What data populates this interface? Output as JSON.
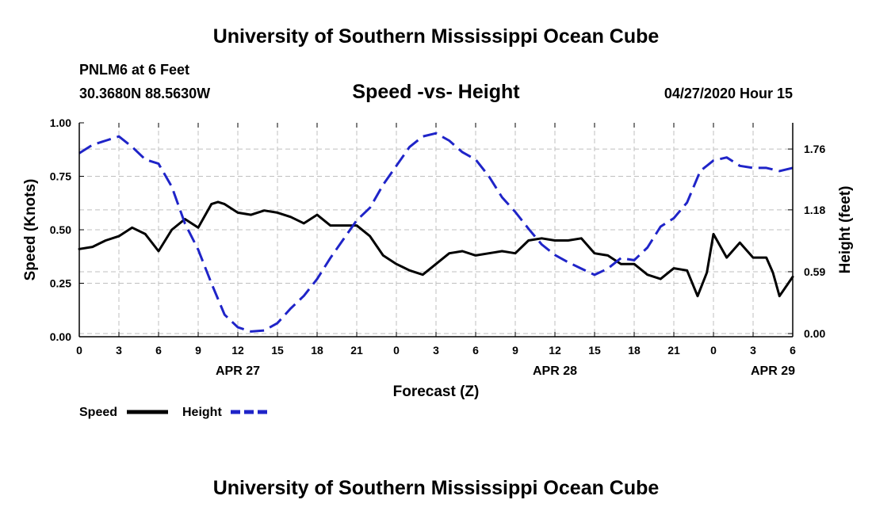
{
  "header": {
    "title": "University of Southern Mississippi Ocean Cube",
    "station": "PNLM6 at 6 Feet",
    "coords": "30.3680N 88.5630W",
    "plot_title": "Speed -vs- Height",
    "timestamp": "04/27/2020 Hour 15",
    "footer_title": "University of Southern Mississippi Ocean Cube"
  },
  "legend": {
    "speed_label": "Speed",
    "height_label": "Height"
  },
  "colors": {
    "speed": "#000000",
    "height": "#1f24c8",
    "grid": "#bfbfbf"
  },
  "chart_data": {
    "type": "line",
    "title": "Speed -vs- Height",
    "xlabel": "Forecast (Z)",
    "ylabel": "Speed (Knots)",
    "y2label": "Height (feet)",
    "xlim": [
      0,
      54
    ],
    "ylim": [
      0,
      1.0
    ],
    "y2lim": [
      -0.03,
      2.01
    ],
    "grid": true,
    "legend_position": "bottom-left",
    "x_ticks": [
      0,
      3,
      6,
      9,
      12,
      15,
      18,
      21,
      24,
      27,
      30,
      33,
      36,
      39,
      42,
      45,
      48,
      51,
      54
    ],
    "x_tick_labels": [
      "0",
      "3",
      "6",
      "9",
      "12",
      "15",
      "18",
      "21",
      "0",
      "3",
      "6",
      "9",
      "12",
      "15",
      "18",
      "21",
      "0",
      "3",
      "6"
    ],
    "date_labels": [
      {
        "x": 12,
        "label": "APR 27"
      },
      {
        "x": 36,
        "label": "APR 28"
      },
      {
        "x": 52.5,
        "label": "APR 29"
      }
    ],
    "y_ticks": [
      0,
      0.25,
      0.5,
      0.75,
      1.0
    ],
    "y_tick_labels": [
      "0.00",
      "0.25",
      "0.50",
      "0.75",
      "1.00"
    ],
    "y2_ticks": [
      0,
      0.59,
      1.18,
      1.76
    ],
    "y2_tick_labels": [
      "0.00",
      "0.59",
      "1.18",
      "1.76"
    ],
    "series": [
      {
        "name": "Speed",
        "axis": "left",
        "style": "solid",
        "x": [
          0,
          1,
          2,
          3,
          4,
          5,
          6,
          7,
          8,
          9,
          10,
          10.5,
          11,
          12,
          13,
          14,
          15,
          16,
          17,
          18,
          19,
          20,
          21,
          22,
          23,
          24,
          25,
          26,
          27,
          28,
          29,
          30,
          31,
          32,
          33,
          34,
          35,
          36,
          37,
          38,
          39,
          40,
          41,
          42,
          43,
          44,
          45,
          46,
          46.8,
          47.5,
          48,
          49,
          50,
          51,
          52,
          52.5,
          53,
          54
        ],
        "values": [
          0.41,
          0.42,
          0.45,
          0.47,
          0.51,
          0.48,
          0.4,
          0.5,
          0.55,
          0.51,
          0.62,
          0.63,
          0.62,
          0.58,
          0.57,
          0.59,
          0.58,
          0.56,
          0.53,
          0.57,
          0.52,
          0.52,
          0.52,
          0.47,
          0.38,
          0.34,
          0.31,
          0.29,
          0.34,
          0.39,
          0.4,
          0.38,
          0.39,
          0.4,
          0.39,
          0.45,
          0.46,
          0.45,
          0.45,
          0.46,
          0.39,
          0.38,
          0.34,
          0.34,
          0.29,
          0.27,
          0.32,
          0.31,
          0.19,
          0.3,
          0.48,
          0.37,
          0.44,
          0.37,
          0.37,
          0.3,
          0.19,
          0.28
        ]
      },
      {
        "name": "Height",
        "axis": "right",
        "style": "dashed",
        "x": [
          0,
          1,
          2,
          3,
          4,
          5,
          6,
          7,
          8,
          9,
          10,
          11,
          12,
          13,
          14,
          15,
          16,
          17,
          18,
          19,
          20,
          21,
          22,
          23,
          24,
          25,
          26,
          27,
          28,
          29,
          30,
          31,
          32,
          33,
          34,
          35,
          36,
          37,
          38,
          39,
          40,
          41,
          42,
          43,
          44,
          45,
          46,
          47,
          48,
          49,
          50,
          51,
          52,
          53,
          54
        ],
        "values": [
          1.72,
          1.8,
          1.84,
          1.88,
          1.78,
          1.66,
          1.62,
          1.4,
          1.05,
          0.8,
          0.48,
          0.18,
          0.06,
          0.02,
          0.03,
          0.1,
          0.24,
          0.36,
          0.52,
          0.72,
          0.9,
          1.08,
          1.2,
          1.42,
          1.6,
          1.78,
          1.88,
          1.91,
          1.84,
          1.73,
          1.66,
          1.5,
          1.3,
          1.16,
          1.0,
          0.85,
          0.75,
          0.68,
          0.62,
          0.56,
          0.62,
          0.72,
          0.7,
          0.82,
          1.02,
          1.1,
          1.25,
          1.55,
          1.65,
          1.68,
          1.6,
          1.58,
          1.58,
          1.55,
          1.58
        ]
      }
    ]
  }
}
